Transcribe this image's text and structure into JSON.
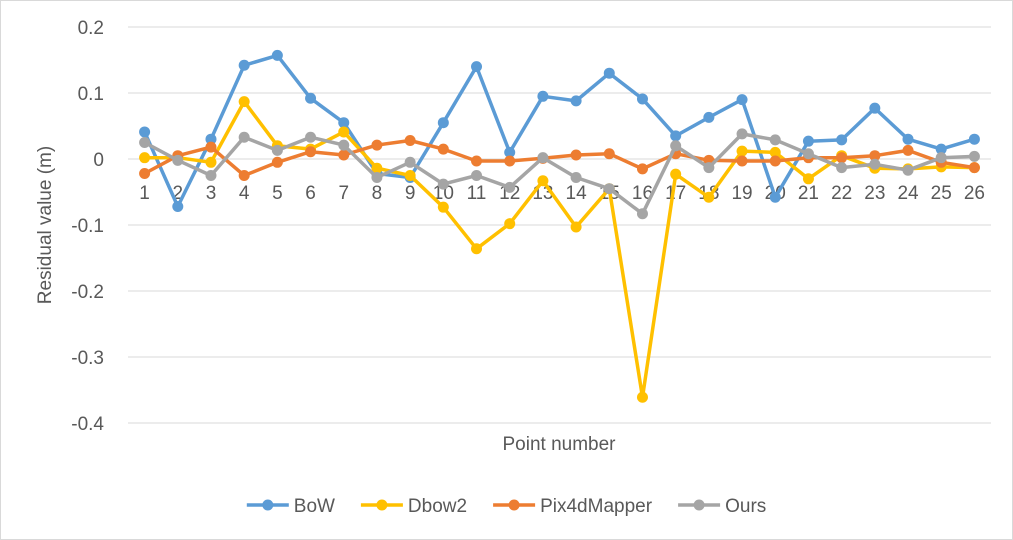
{
  "chart_data": {
    "type": "line",
    "title": "",
    "xlabel": "Point number",
    "ylabel": "Residual value (m)",
    "ylim": [
      -0.4,
      0.2
    ],
    "yticks": [
      0.2,
      0.1,
      0,
      -0.1,
      -0.2,
      -0.3,
      -0.4
    ],
    "ytick_labels": [
      "0.2",
      "0.1",
      "0",
      "-0.1",
      "-0.2",
      "-0.3",
      "-0.4"
    ],
    "categories": [
      "1",
      "2",
      "3",
      "4",
      "5",
      "6",
      "7",
      "8",
      "9",
      "10",
      "11",
      "12",
      "13",
      "14",
      "15",
      "16",
      "17",
      "18",
      "19",
      "20",
      "21",
      "22",
      "23",
      "24",
      "25",
      "26"
    ],
    "grid": "horizontal",
    "legend_position": "bottom",
    "series": [
      {
        "name": "BoW",
        "color": "#5b9bd5",
        "values": [
          0.041,
          -0.072,
          0.03,
          0.142,
          0.157,
          0.092,
          0.055,
          -0.022,
          -0.028,
          0.055,
          0.14,
          0.01,
          0.095,
          0.088,
          0.13,
          0.091,
          0.035,
          0.063,
          0.09,
          -0.058,
          0.027,
          0.029,
          0.077,
          0.03,
          0.015,
          0.03
        ]
      },
      {
        "name": "Dbow2",
        "color": "#ffc000",
        "values": [
          0.002,
          0.002,
          -0.005,
          0.087,
          0.02,
          0.015,
          0.041,
          -0.014,
          -0.025,
          -0.073,
          -0.136,
          -0.098,
          -0.033,
          -0.103,
          -0.045,
          -0.361,
          -0.023,
          -0.058,
          0.012,
          0.01,
          -0.03,
          0.005,
          -0.014,
          -0.015,
          -0.012,
          -0.013
        ]
      },
      {
        "name": "Pix4dMapper",
        "color": "#ed7d31",
        "values": [
          -0.022,
          0.005,
          0.018,
          -0.025,
          -0.005,
          0.011,
          0.006,
          0.021,
          0.028,
          0.015,
          -0.003,
          -0.003,
          0.001,
          0.006,
          0.008,
          -0.015,
          0.008,
          -0.002,
          -0.003,
          -0.003,
          0.002,
          0.002,
          0.005,
          0.013,
          -0.005,
          -0.013
        ]
      },
      {
        "name": "Ours",
        "color": "#a5a5a5",
        "values": [
          0.025,
          -0.002,
          -0.025,
          0.033,
          0.013,
          0.033,
          0.021,
          -0.028,
          -0.005,
          -0.038,
          -0.025,
          -0.043,
          0.002,
          -0.028,
          -0.045,
          -0.083,
          0.02,
          -0.013,
          0.038,
          0.029,
          0.008,
          -0.013,
          -0.008,
          -0.017,
          0.002,
          0.004
        ]
      }
    ]
  }
}
